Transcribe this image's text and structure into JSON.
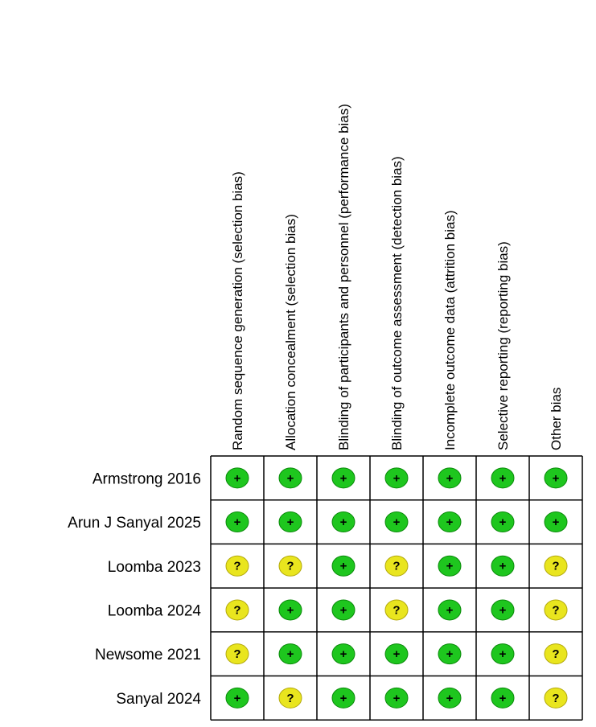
{
  "columns": [
    "Random sequence generation (selection bias)",
    "Allocation concealment (selection bias)",
    "Blinding of participants and personnel (performance bias)",
    "Blinding of outcome assessment (detection bias)",
    "Incomplete outcome data (attrition bias)",
    "Selective reporting (reporting bias)",
    "Other bias"
  ],
  "rows": [
    {
      "label": "Armstrong 2016",
      "cells": [
        "+",
        "+",
        "+",
        "+",
        "+",
        "+",
        "+"
      ]
    },
    {
      "label": "Arun J Sanyal 2025",
      "cells": [
        "+",
        "+",
        "+",
        "+",
        "+",
        "+",
        "+"
      ]
    },
    {
      "label": "Loomba 2023",
      "cells": [
        "?",
        "?",
        "+",
        "?",
        "+",
        "+",
        "?"
      ]
    },
    {
      "label": "Loomba 2024",
      "cells": [
        "?",
        "+",
        "+",
        "?",
        "+",
        "+",
        "?"
      ]
    },
    {
      "label": "Newsome 2021",
      "cells": [
        "?",
        "+",
        "+",
        "+",
        "+",
        "+",
        "?"
      ]
    },
    {
      "label": "Sanyal 2024",
      "cells": [
        "+",
        "?",
        "+",
        "+",
        "+",
        "+",
        "?"
      ]
    }
  ]
}
